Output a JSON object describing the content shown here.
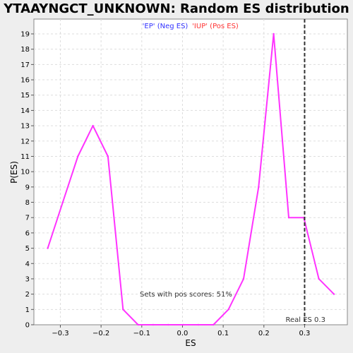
{
  "chart_data": {
    "type": "line",
    "title": "YTAAYNGCT_UNKNOWN: Random ES distribution",
    "xlabel": "ES",
    "ylabel": "P(ES)",
    "xlim": [
      -0.365,
      0.405
    ],
    "ylim": [
      0,
      20
    ],
    "xticks": [
      -0.3,
      -0.2,
      -0.1,
      0.0,
      0.1,
      0.2,
      0.3
    ],
    "xtick_labels": [
      "−0.3",
      "−0.2",
      "−0.1",
      "0.0",
      "0.1",
      "0.2",
      "0.3"
    ],
    "yticks": [
      0,
      1,
      2,
      3,
      4,
      5,
      6,
      7,
      8,
      9,
      10,
      11,
      12,
      13,
      14,
      15,
      16,
      17,
      18,
      19
    ],
    "ytick_labels": [
      "0",
      "1",
      "2",
      "3",
      "4",
      "5",
      "6",
      "7",
      "8",
      "9",
      "10",
      "11",
      "12",
      "13",
      "14",
      "15",
      "16",
      "17",
      "18",
      "19"
    ],
    "grid": true,
    "series": [
      {
        "name": "",
        "color": "#ff33ff",
        "x": [
          -0.331,
          -0.294,
          -0.257,
          -0.22,
          -0.183,
          -0.146,
          -0.109,
          -0.072,
          -0.035,
          0.002,
          0.039,
          0.076,
          0.113,
          0.15,
          0.187,
          0.224,
          0.261,
          0.298,
          0.335,
          0.372
        ],
        "y": [
          5,
          8,
          11,
          13,
          11,
          1,
          0,
          0,
          0,
          0,
          0,
          0,
          1,
          3,
          9,
          19,
          7,
          7,
          3,
          2
        ]
      }
    ],
    "legend": {
      "placement": "top-center",
      "items": [
        {
          "label": "'EP' (Neg ES)",
          "color": "#3333ff"
        },
        {
          "label": "'IUP' (Pos ES)",
          "color": "#ff3333"
        }
      ]
    },
    "reference_line": {
      "x": 0.3,
      "label": "Real ES 0.3",
      "style": "dashed",
      "color": "#333333"
    },
    "annotation": "Sets with pos scores: 51%"
  }
}
